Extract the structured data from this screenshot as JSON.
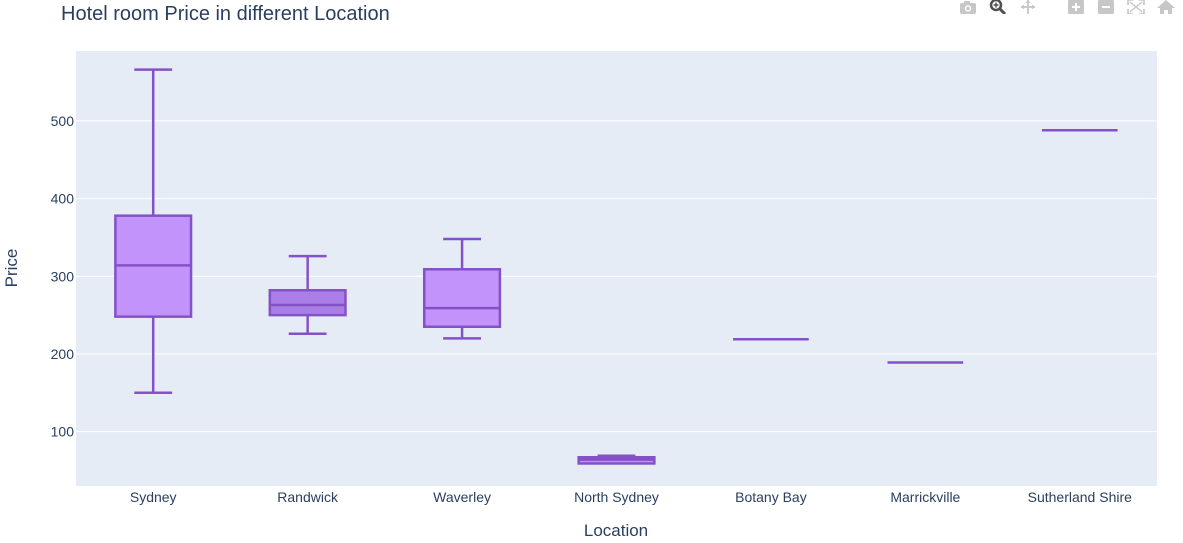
{
  "modebar": [
    {
      "name": "camera-icon",
      "active": false
    },
    {
      "name": "zoom-icon",
      "active": true
    },
    {
      "name": "pan-icon",
      "active": false
    },
    {
      "name": "zoom-in-icon",
      "active": false
    },
    {
      "name": "zoom-out-icon",
      "active": false
    },
    {
      "name": "autoscale-icon",
      "active": false
    },
    {
      "name": "home-icon",
      "active": false
    }
  ],
  "chart_data": {
    "type": "box",
    "title": "Hotel room Price in different Location",
    "xlabel": "Location",
    "ylabel": "Price",
    "ylim": [
      30,
      590
    ],
    "yticks": [
      100,
      200,
      300,
      400,
      500
    ],
    "grid": true,
    "colors": {
      "plot_bg": "#e5ecf6",
      "grid": "#ffffff",
      "box_line": "#8551c7",
      "box_fill": "#c293fb",
      "box_fill_dense": "#a97ee6",
      "text": "#2a3f5f"
    },
    "categories": [
      "Sydney",
      "Randwick",
      "Waverley",
      "North Sydney",
      "Botany Bay",
      "Marrickville",
      "Sutherland Shire"
    ],
    "boxes": [
      {
        "min": 150,
        "q1": 248,
        "median": 314,
        "q3": 378,
        "max": 566
      },
      {
        "min": 226,
        "q1": 250,
        "median": 263,
        "q3": 282,
        "max": 326
      },
      {
        "min": 220,
        "q1": 235,
        "median": 259,
        "q3": 309,
        "max": 348
      },
      {
        "min": 59,
        "q1": 59,
        "median": 64,
        "q3": 67,
        "max": 69
      },
      {
        "min": 219,
        "q1": 219,
        "median": 219,
        "q3": 219,
        "max": 219
      },
      {
        "min": 189,
        "q1": 189,
        "median": 189,
        "q3": 189,
        "max": 189
      },
      {
        "min": 488,
        "q1": 488,
        "median": 488,
        "q3": 488,
        "max": 488
      }
    ]
  }
}
